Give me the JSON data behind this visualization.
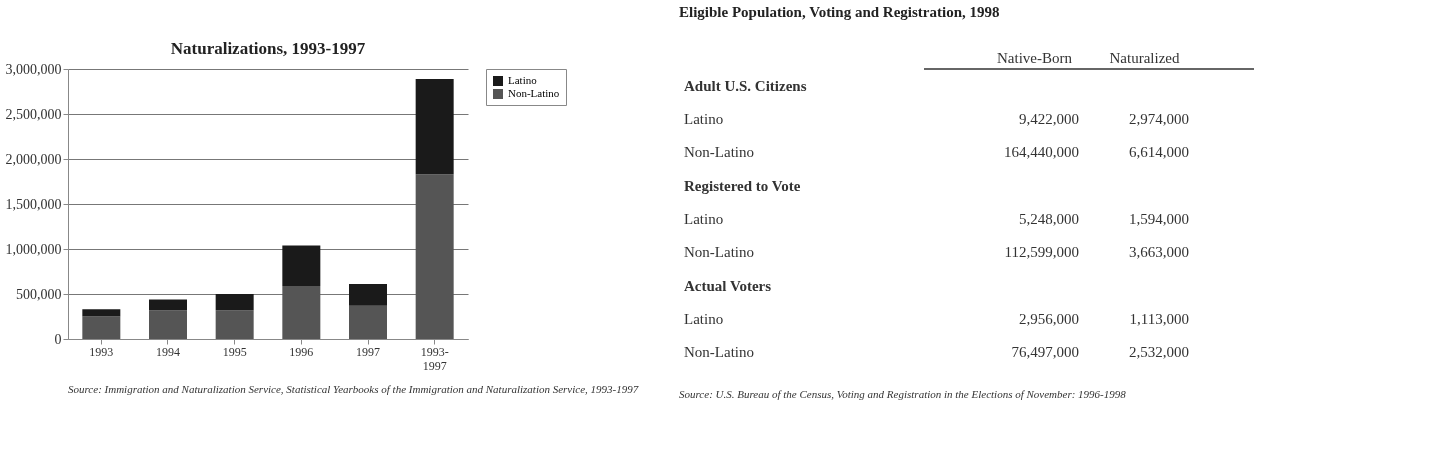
{
  "chart_data": [
    {
      "type": "bar",
      "title": "Naturalizations, 1993-1997",
      "stacked": true,
      "categories": [
        "1993",
        "1994",
        "1995",
        "1996",
        "1997",
        "1993-1997"
      ],
      "series": [
        {
          "name": "Non-Latino",
          "color": "#555555",
          "values": [
            250000,
            320000,
            320000,
            590000,
            370000,
            1830000
          ]
        },
        {
          "name": "Latino",
          "color": "#1a1a1a",
          "values": [
            80000,
            120000,
            180000,
            450000,
            240000,
            1060000
          ]
        }
      ],
      "ylim": [
        0,
        3000000
      ],
      "yticks": [
        {
          "value": 0,
          "label": "0"
        },
        {
          "value": 500000,
          "label": "500,000"
        },
        {
          "value": 1000000,
          "label": "1,000,000"
        },
        {
          "value": 1500000,
          "label": "1,500,000"
        },
        {
          "value": 2000000,
          "label": "2,000,000"
        },
        {
          "value": 2500000,
          "label": "2,500,000"
        },
        {
          "value": 3000000,
          "label": "3,000,000"
        }
      ],
      "grid": "y",
      "legend": "right",
      "annotations": [
        "Source: Immigration and Naturalization Service, Statistical Yearbooks of the Immigration and Naturalization Service, 1993-1997"
      ]
    },
    {
      "type": "other",
      "title": "Eligible Population, Voting and Registration, 1998",
      "categories": [
        "Native-Born",
        "Naturalized"
      ],
      "y_categories": [
        "Adult U.S. Citizens",
        "Latino",
        "Non-Latino",
        "Registered to Vote",
        "Latino",
        "Non-Latino",
        "Actual Voters",
        "Latino",
        "Non-Latino"
      ],
      "cell_labels": [
        [
          null,
          null
        ],
        [
          "9,422,000",
          "2,974,000"
        ],
        [
          "164,440,000",
          "6,614,000"
        ],
        [
          null,
          null
        ],
        [
          "5,248,000",
          "1,594,000"
        ],
        [
          "112,599,000",
          "3,663,000"
        ],
        [
          null,
          null
        ],
        [
          "2,956,000",
          "1,113,000"
        ],
        [
          "76,497,000",
          "2,532,000"
        ]
      ],
      "annotations": [
        "Source: U.S. Bureau of the Census, Voting and Registration in the Elections of November: 1996-1998"
      ]
    }
  ]
}
